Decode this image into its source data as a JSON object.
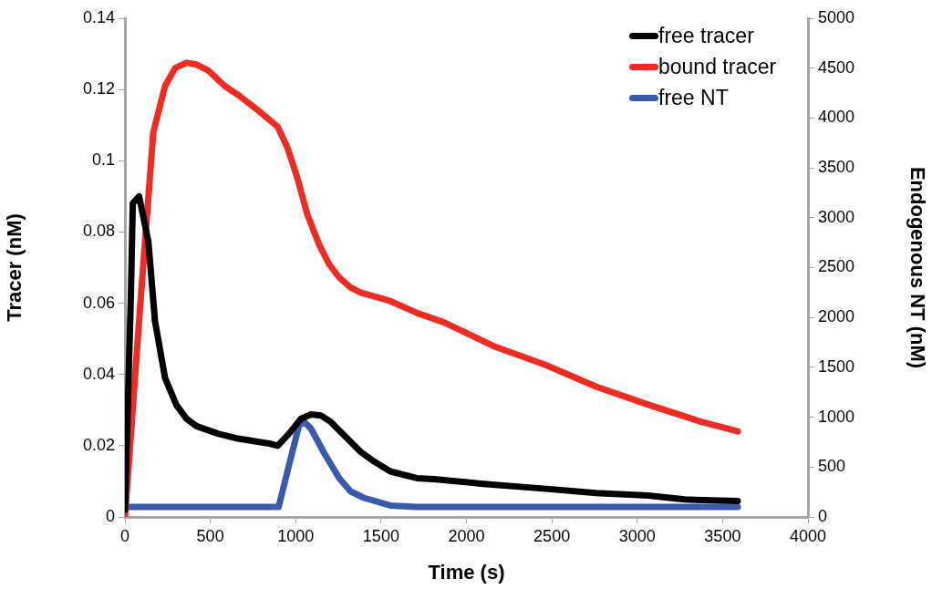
{
  "chart_data": {
    "type": "line",
    "xlabel": "Time (s)",
    "ylabel": "Tracer (nM)",
    "y2label": "Endogenous NT (nM)",
    "xlim": [
      0,
      4000
    ],
    "xticks": [
      0,
      500,
      1000,
      1500,
      2000,
      2500,
      3000,
      3500,
      4000
    ],
    "ylim": [
      0,
      0.14
    ],
    "yticks": [
      0,
      0.02,
      0.04,
      0.06,
      0.08,
      0.1,
      0.12,
      0.14
    ],
    "y2lim": [
      0,
      5000
    ],
    "y2ticks": [
      0,
      500,
      1000,
      1500,
      2000,
      2500,
      3000,
      3500,
      4000,
      4500,
      5000
    ],
    "grid": false,
    "legend": "top right",
    "marker": "none",
    "line_style": "solid",
    "series": [
      {
        "name": "free tracer",
        "color": "#000000",
        "x": [
          0,
          35,
          46,
          83,
          137,
          176,
          235,
          302,
          360,
          419,
          545,
          662,
          778,
          846,
          895,
          961,
          1031,
          1089,
          1147,
          1205,
          1303,
          1380,
          1458,
          1554,
          1709,
          1810,
          2099,
          2467,
          2758,
          3065,
          3279,
          3589
        ],
        "values": [
          0.002,
          0.0625,
          0.088,
          0.09,
          0.0774,
          0.055,
          0.039,
          0.0314,
          0.0276,
          0.0255,
          0.0234,
          0.022,
          0.0211,
          0.0206,
          0.02,
          0.0234,
          0.0276,
          0.0288,
          0.0285,
          0.0267,
          0.022,
          0.0183,
          0.0156,
          0.0128,
          0.0109,
          0.0106,
          0.0093,
          0.0079,
          0.0067,
          0.006,
          0.0049,
          0.0045
        ]
      },
      {
        "name": "bound tracer",
        "color": "#ee2c24",
        "x": [
          0,
          89,
          166,
          235,
          294,
          360,
          419,
          486,
          584,
          662,
          778,
          895,
          953,
          1010,
          1068,
          1137,
          1196,
          1255,
          1322,
          1380,
          1554,
          1709,
          1869,
          2157,
          2467,
          2758,
          3065,
          3356,
          3589
        ],
        "values": [
          0,
          0.059,
          0.108,
          0.121,
          0.126,
          0.1275,
          0.127,
          0.1254,
          0.121,
          0.1185,
          0.1142,
          0.1095,
          0.1035,
          0.0951,
          0.0849,
          0.0765,
          0.0709,
          0.0672,
          0.0644,
          0.063,
          0.0606,
          0.0573,
          0.0546,
          0.048,
          0.0426,
          0.0366,
          0.0315,
          0.027,
          0.024
        ]
      },
      {
        "name": "free NT",
        "color": "#3a5ba9",
        "axis": "y2",
        "x": [
          0,
          900,
          961,
          1020,
          1050,
          1089,
          1167,
          1255,
          1322,
          1399,
          1554,
          1709,
          3589
        ],
        "values": [
          100,
          100,
          521,
          919,
          953,
          887,
          640,
          388,
          256,
          192,
          115,
          100,
          100
        ]
      }
    ]
  }
}
